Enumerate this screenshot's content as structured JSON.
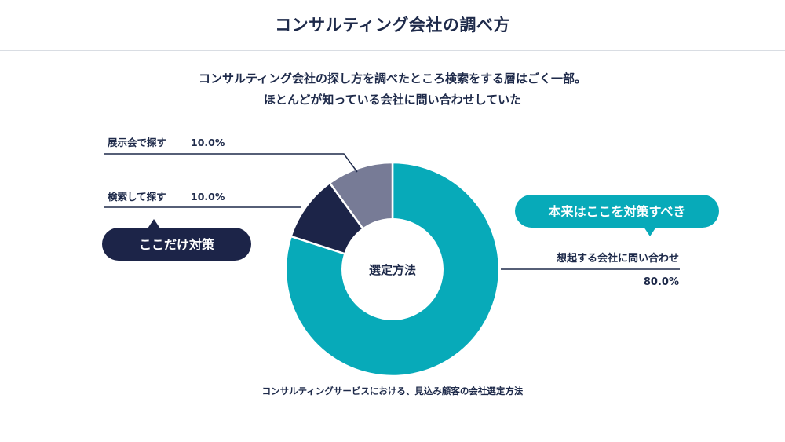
{
  "header": {
    "title": "コンサルティング会社の調べ方"
  },
  "subtitle": {
    "line1": "コンサルティング会社の探し方を調べたところ検索をする層はごく一部。",
    "line2": "ほとんどが知っている会社に問い合わせしていた"
  },
  "colors": {
    "primary": "#07aab9",
    "navy": "#1c2448",
    "slate": "#777b96",
    "text": "#1e2a4a"
  },
  "callouts": {
    "left": "ここだけ対策",
    "right": "本来はここを対策すべき"
  },
  "chart_data": {
    "type": "pie",
    "center_label": "選定方法",
    "caption": "コンサルティングサービスにおける、見込み顧客の会社選定方法",
    "slices": [
      {
        "label": "想起する会社に問い合わせ",
        "value": 80.0,
        "value_label": "80.0%",
        "color": "#07aab9"
      },
      {
        "label": "検索して探す",
        "value": 10.0,
        "value_label": "10.0%",
        "color": "#1c2448"
      },
      {
        "label": "展示会で探す",
        "value": 10.0,
        "value_label": "10.0%",
        "color": "#777b96"
      }
    ]
  }
}
